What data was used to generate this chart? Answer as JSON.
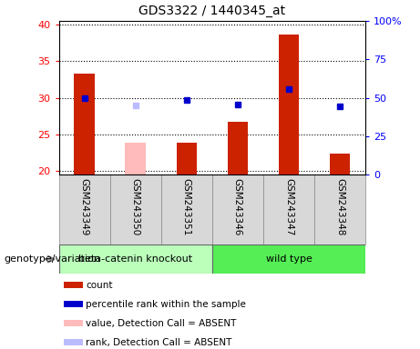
{
  "title": "GDS3322 / 1440345_at",
  "samples": [
    "GSM243349",
    "GSM243350",
    "GSM243351",
    "GSM243346",
    "GSM243347",
    "GSM243348"
  ],
  "bar_values": [
    33.3,
    23.8,
    23.8,
    26.7,
    38.7,
    22.4
  ],
  "bar_absent": [
    false,
    true,
    false,
    false,
    false,
    false
  ],
  "rank_values": [
    30.0,
    28.9,
    29.7,
    29.1,
    31.2,
    28.8
  ],
  "rank_absent": [
    false,
    true,
    false,
    false,
    false,
    false
  ],
  "ylim_left": [
    19.5,
    40.5
  ],
  "ylim_right": [
    0,
    100
  ],
  "yticks_left": [
    20,
    25,
    30,
    35,
    40
  ],
  "ytick_labels_right": [
    "0",
    "25",
    "50",
    "75",
    "100%"
  ],
  "group1_label": "beta-catenin knockout",
  "group2_label": "wild type",
  "group1_indices": [
    0,
    1,
    2
  ],
  "group2_indices": [
    3,
    4,
    5
  ],
  "group1_color": "#bbffbb",
  "group2_color": "#55ee55",
  "genotype_label": "genotype/variation",
  "legend_items": [
    {
      "label": "count",
      "color": "#cc2200"
    },
    {
      "label": "percentile rank within the sample",
      "color": "#0000cc"
    },
    {
      "label": "value, Detection Call = ABSENT",
      "color": "#ffbbbb"
    },
    {
      "label": "rank, Detection Call = ABSENT",
      "color": "#bbbbff"
    }
  ],
  "bar_color": "#cc2200",
  "bar_absent_color": "#ffbbbb",
  "rank_color": "#0000cc",
  "rank_absent_color": "#bbbbff",
  "bar_width": 0.4,
  "rank_markersize": 5
}
